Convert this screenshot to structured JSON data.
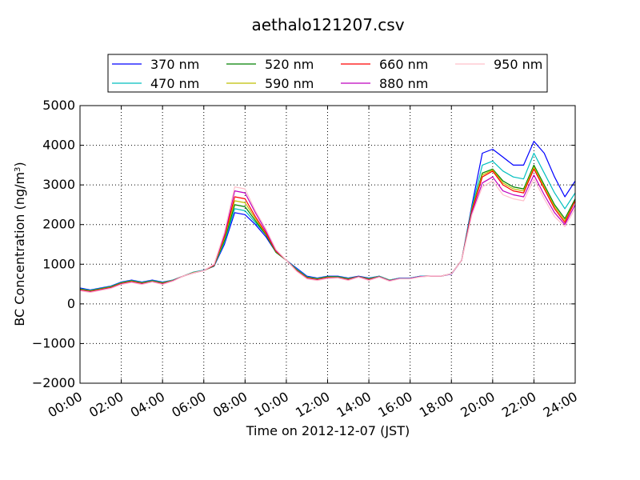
{
  "chart_data": {
    "type": "line",
    "title": "aethalo121207.csv",
    "xlabel": "Time on 2012-12-07 (JST)",
    "ylabel": "BC Concentration (ng/m³)",
    "ylabel_parts": {
      "main": "BC Concentration (ng/m",
      "sup": "3",
      "end": ")"
    },
    "xlim": [
      "00:00",
      "24:00"
    ],
    "ylim": [
      -2000,
      5000
    ],
    "x_ticks": [
      "00:00",
      "02:00",
      "04:00",
      "06:00",
      "08:00",
      "10:00",
      "12:00",
      "14:00",
      "16:00",
      "18:00",
      "20:00",
      "22:00",
      "24:00"
    ],
    "y_ticks": [
      "−2000",
      "−1000",
      "0",
      "1000",
      "2000",
      "3000",
      "4000",
      "5000"
    ],
    "grid": true,
    "legend_position": "top",
    "x": [
      "00:00",
      "00:30",
      "01:00",
      "01:30",
      "02:00",
      "02:30",
      "03:00",
      "03:30",
      "04:00",
      "04:30",
      "05:00",
      "05:30",
      "06:00",
      "06:30",
      "07:00",
      "07:30",
      "08:00",
      "08:30",
      "09:00",
      "09:30",
      "10:00",
      "10:30",
      "11:00",
      "11:30",
      "12:00",
      "12:30",
      "13:00",
      "13:30",
      "14:00",
      "14:30",
      "15:00",
      "15:30",
      "16:00",
      "16:30",
      "17:00",
      "17:30",
      "18:00",
      "18:30",
      "19:00",
      "19:30",
      "20:00",
      "20:30",
      "21:00",
      "21:30",
      "22:00",
      "22:30",
      "23:00",
      "23:30",
      "24:00"
    ],
    "series": [
      {
        "name": "370 nm",
        "color": "#0000ff",
        "values": [
          400,
          350,
          400,
          450,
          550,
          600,
          550,
          600,
          550,
          600,
          700,
          800,
          850,
          950,
          1500,
          2300,
          2250,
          2000,
          1700,
          1300,
          1100,
          900,
          700,
          650,
          700,
          700,
          650,
          700,
          650,
          700,
          600,
          650,
          650,
          700,
          700,
          700,
          750,
          1100,
          2500,
          3800,
          3900,
          3700,
          3500,
          3500,
          4100,
          3800,
          3200,
          2700,
          3100
        ]
      },
      {
        "name": "470 nm",
        "color": "#00bfbf",
        "values": [
          380,
          340,
          390,
          440,
          540,
          590,
          540,
          590,
          540,
          600,
          700,
          800,
          850,
          960,
          1550,
          2400,
          2350,
          2050,
          1750,
          1300,
          1100,
          880,
          680,
          640,
          690,
          690,
          640,
          690,
          640,
          700,
          600,
          650,
          650,
          700,
          700,
          700,
          760,
          1100,
          2450,
          3500,
          3600,
          3350,
          3200,
          3150,
          3800,
          3300,
          2800,
          2400,
          2800
        ]
      },
      {
        "name": "520 nm",
        "color": "#008000",
        "values": [
          370,
          330,
          380,
          430,
          530,
          580,
          530,
          580,
          530,
          590,
          700,
          790,
          840,
          960,
          1600,
          2500,
          2450,
          2100,
          1750,
          1300,
          1100,
          860,
          670,
          630,
          680,
          680,
          630,
          690,
          630,
          690,
          590,
          640,
          640,
          690,
          700,
          700,
          760,
          1100,
          2400,
          3300,
          3400,
          3100,
          2950,
          2900,
          3500,
          3000,
          2500,
          2150,
          2650
        ]
      },
      {
        "name": "590 nm",
        "color": "#bfbf00",
        "values": [
          360,
          320,
          370,
          420,
          520,
          570,
          520,
          570,
          520,
          590,
          700,
          790,
          840,
          970,
          1650,
          2600,
          2550,
          2150,
          1780,
          1320,
          1100,
          850,
          660,
          620,
          670,
          670,
          620,
          690,
          620,
          690,
          590,
          640,
          640,
          690,
          700,
          700,
          760,
          1100,
          2380,
          3250,
          3380,
          3050,
          2900,
          2850,
          3450,
          2950,
          2450,
          2100,
          2600
        ]
      },
      {
        "name": "660 nm",
        "color": "#ff0000",
        "values": [
          350,
          310,
          360,
          410,
          510,
          560,
          510,
          560,
          510,
          580,
          700,
          780,
          840,
          980,
          1700,
          2700,
          2650,
          2200,
          1800,
          1330,
          1100,
          840,
          650,
          610,
          660,
          660,
          610,
          680,
          610,
          680,
          580,
          640,
          640,
          690,
          700,
          700,
          760,
          1100,
          2350,
          3200,
          3350,
          3000,
          2850,
          2800,
          3400,
          2900,
          2400,
          2050,
          2600
        ]
      },
      {
        "name": "880 nm",
        "color": "#bf00bf",
        "values": [
          340,
          300,
          350,
          400,
          500,
          550,
          500,
          560,
          500,
          580,
          700,
          780,
          840,
          990,
          1750,
          2850,
          2800,
          2300,
          1850,
          1350,
          1100,
          830,
          640,
          600,
          650,
          660,
          600,
          680,
          600,
          680,
          580,
          640,
          640,
          690,
          700,
          700,
          760,
          1100,
          2300,
          3050,
          3200,
          2850,
          2750,
          2700,
          3250,
          2750,
          2300,
          2000,
          2500
        ]
      },
      {
        "name": "950 nm",
        "color": "#ffc0cb",
        "values": [
          330,
          290,
          340,
          390,
          490,
          540,
          490,
          550,
          490,
          570,
          700,
          780,
          840,
          1000,
          1800,
          2950,
          2900,
          2350,
          1900,
          1370,
          1100,
          820,
          630,
          590,
          640,
          650,
          590,
          670,
          590,
          670,
          570,
          630,
          630,
          680,
          700,
          700,
          760,
          1100,
          2250,
          2950,
          3100,
          2750,
          2650,
          2600,
          3150,
          2650,
          2200,
          1950,
          2400
        ]
      }
    ]
  }
}
